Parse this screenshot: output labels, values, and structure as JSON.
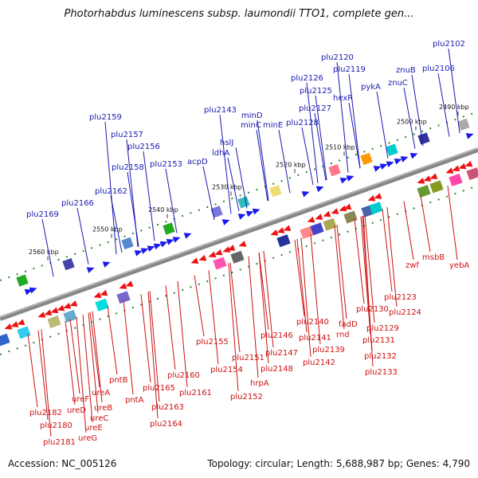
{
  "title": "Photorhabdus luminescens subsp. laumondii TTO1, complete gen...",
  "footer": {
    "accession": "Accession: NC_005126",
    "topology": "Topology: circular; Length: 5,688,987 bp; Genes: 4,790"
  },
  "colors": {
    "forward": "#1a1aee",
    "reverse": "#ee1111",
    "backbone": "#888888",
    "tick": "#2a8a2a",
    "forward_label": "#1a1ab0",
    "reverse_label": "#cc1111"
  },
  "ticks": [
    "2490 kbp",
    "2500 kbp",
    "2510 kbp",
    "2520 kbp",
    "2530 kbp",
    "2540 kbp",
    "2550 kbp",
    "2560 kbp"
  ],
  "forward_labels": [
    "plu2102",
    "znuB",
    "plu2106",
    "znuC",
    "plu2120",
    "plu2119",
    "plu2126",
    "pykA",
    "plu2125",
    "hexR",
    "plu2127",
    "plu2128",
    "plu2143",
    "minD",
    "minC",
    "minE",
    "hslJ",
    "ldhA",
    "acpD",
    "plu2159",
    "plu2157",
    "plu2156",
    "plu2158",
    "plu2153",
    "plu2162",
    "plu2166",
    "plu2169"
  ],
  "reverse_labels": [
    "yebA",
    "msbB",
    "zwf",
    "plu2123",
    "plu2124",
    "plu2130",
    "plu2129",
    "fadD",
    "rnd",
    "plu2131",
    "plu2132",
    "plu2133",
    "plu2140",
    "plu2141",
    "plu2139",
    "plu2142",
    "plu2146",
    "plu2147",
    "plu2148",
    "plu2155",
    "plu2151",
    "plu2154",
    "hrpA",
    "plu2152",
    "plu2160",
    "plu2161",
    "plu2165",
    "plu2163",
    "plu2164",
    "pntB",
    "pntA",
    "ureA",
    "ureB",
    "ureF",
    "ureD",
    "ureC",
    "ureE",
    "ureG",
    "plu2182",
    "plu2180",
    "plu2181"
  ]
}
